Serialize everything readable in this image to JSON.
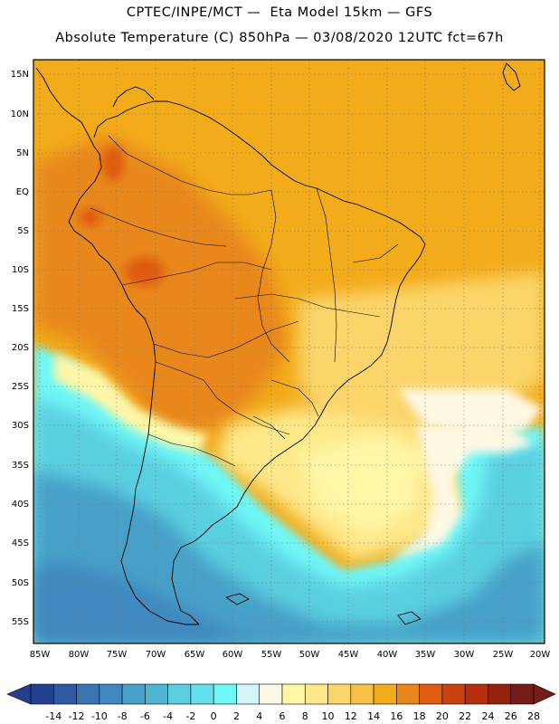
{
  "header": {
    "line1": "CPTEC/INPE/MCT —  Eta Model 15km — GFS",
    "line2": "Absolute Temperature (C) 850hPa — 03/08/2020 12UTC fct=67h"
  },
  "map": {
    "lat_labels": [
      "15N",
      "10N",
      "5N",
      "EQ",
      "5S",
      "10S",
      "15S",
      "20S",
      "25S",
      "30S",
      "35S",
      "40S",
      "45S",
      "50S",
      "55S"
    ],
    "lon_labels": [
      "85W",
      "80W",
      "75W",
      "70W",
      "65W",
      "60W",
      "55W",
      "50W",
      "45W",
      "40W",
      "35W",
      "30W",
      "25W",
      "20W"
    ]
  },
  "colorbar": {
    "ticks": [
      "-14",
      "-12",
      "-10",
      "-8",
      "-6",
      "-4",
      "-2",
      "0",
      "2",
      "4",
      "6",
      "8",
      "10",
      "12",
      "14",
      "16",
      "18",
      "20",
      "22",
      "24",
      "26",
      "28"
    ],
    "colors": [
      "#233f8f",
      "#2e5aa1",
      "#3a73b2",
      "#3f88bf",
      "#47a0c8",
      "#4fb6d2",
      "#5acfe0",
      "#64e0ec",
      "#6ff7f7",
      "#d2f4fa",
      "#fff8e3",
      "#fff6a6",
      "#fee88a",
      "#fbd56a",
      "#f6c245",
      "#f2ab1a",
      "#e8871c",
      "#df5c10",
      "#c94211",
      "#b52f0e",
      "#93220f",
      "#761b17"
    ]
  }
}
